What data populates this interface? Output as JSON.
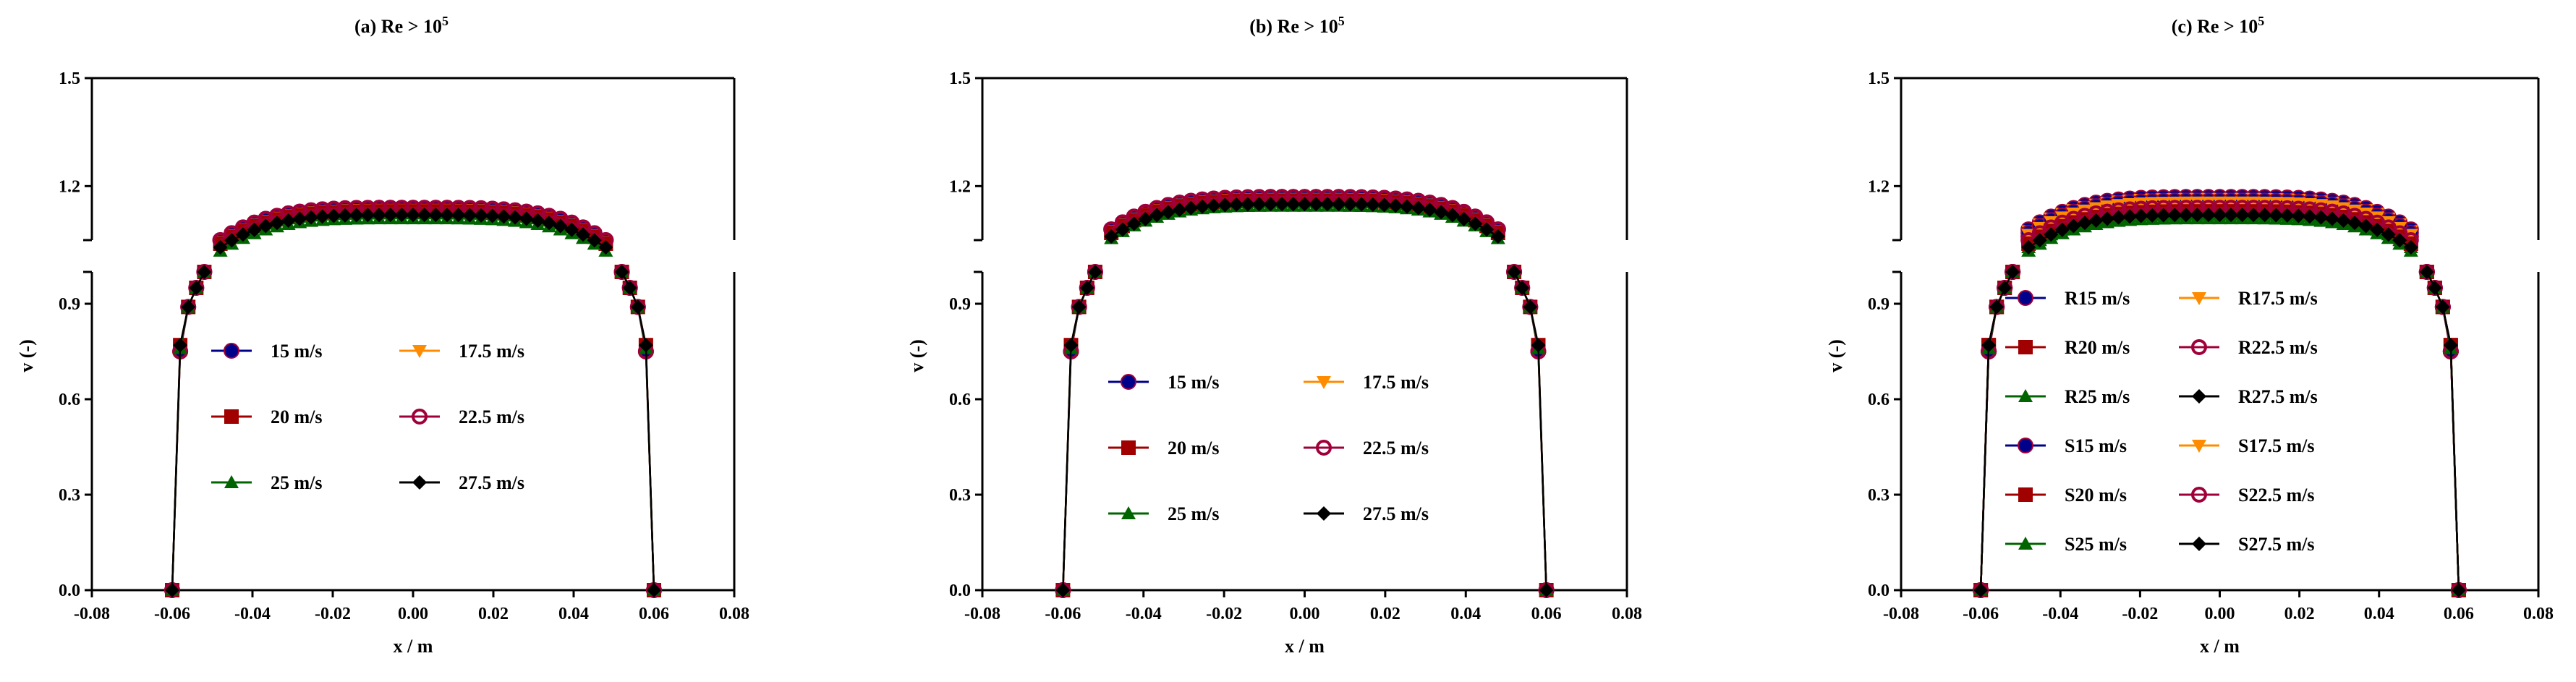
{
  "figure": {
    "panels": [
      "a",
      "b",
      "c"
    ]
  },
  "chart_data": [
    {
      "id": "a",
      "type": "line",
      "title_prefix": "(a) Re > 10",
      "title_superscript": "5",
      "xlabel": "x / m",
      "ylabel": "v (-)",
      "xlim": [
        -0.08,
        0.08
      ],
      "xticks": [
        "-0.08",
        "-0.06",
        "-0.04",
        "-0.02",
        "0.00",
        "0.02",
        "0.04",
        "0.06",
        "0.08"
      ],
      "yticks_low": [
        "0.0",
        "0.3",
        "0.6",
        "0.9"
      ],
      "yticks_high": [
        "1.2",
        "1.5"
      ],
      "ylim_low": [
        0,
        1.0
      ],
      "ylim_high": [
        1.05,
        1.5
      ],
      "legend_columns": 2,
      "series": [
        {
          "name": "15 m/s",
          "color": "#00008b",
          "marker": "circle",
          "plateau": 1.14
        },
        {
          "name": "17.5 m/s",
          "color": "#ff8c00",
          "marker": "triangle-down",
          "plateau": 1.135
        },
        {
          "name": "20 m/s",
          "color": "#a00000",
          "marker": "square",
          "plateau": 1.13
        },
        {
          "name": "22.5 m/s",
          "color": "#a0003a",
          "marker": "circle-open",
          "plateau": 1.14
        },
        {
          "name": "25 m/s",
          "color": "#006400",
          "marker": "triangle-up",
          "plateau": 1.11
        },
        {
          "name": "27.5 m/s",
          "color": "#000000",
          "marker": "diamond",
          "plateau": 1.12
        }
      ]
    },
    {
      "id": "b",
      "type": "line",
      "title_prefix": "(b)  Re > 10",
      "title_superscript": "5",
      "xlabel": "x / m",
      "ylabel": "v (-)",
      "xlim": [
        -0.08,
        0.08
      ],
      "xticks": [
        "-0.08",
        "-0.06",
        "-0.04",
        "-0.02",
        "0.00",
        "0.02",
        "0.04",
        "0.06",
        "0.08"
      ],
      "yticks_low": [
        "0.0",
        "0.3",
        "0.6",
        "0.9"
      ],
      "yticks_high": [
        "1.2",
        "1.5"
      ],
      "ylim_low": [
        0,
        1.0
      ],
      "ylim_high": [
        1.05,
        1.5
      ],
      "legend_columns": 2,
      "series": [
        {
          "name": "15 m/s",
          "color": "#00008b",
          "marker": "circle",
          "plateau": 1.17
        },
        {
          "name": "17.5 m/s",
          "color": "#ff8c00",
          "marker": "triangle-down",
          "plateau": 1.165
        },
        {
          "name": "20 m/s",
          "color": "#a00000",
          "marker": "square",
          "plateau": 1.16
        },
        {
          "name": "22.5 m/s",
          "color": "#a0003a",
          "marker": "circle-open",
          "plateau": 1.17
        },
        {
          "name": "25 m/s",
          "color": "#006400",
          "marker": "triangle-up",
          "plateau": 1.145
        },
        {
          "name": "27.5 m/s",
          "color": "#000000",
          "marker": "diamond",
          "plateau": 1.15
        }
      ]
    },
    {
      "id": "c",
      "type": "line",
      "title_prefix": "(c)  Re > 10",
      "title_superscript": "5",
      "xlabel": "x / m",
      "ylabel": "v (-)",
      "xlim": [
        -0.08,
        0.08
      ],
      "xticks": [
        "-0.08",
        "-0.06",
        "-0.04",
        "-0.02",
        "0.00",
        "0.02",
        "0.04",
        "0.06",
        "0.08"
      ],
      "yticks_low": [
        "0.0",
        "0.3",
        "0.6",
        "0.9"
      ],
      "yticks_high": [
        "1.2",
        "1.5"
      ],
      "ylim_low": [
        0,
        1.0
      ],
      "ylim_high": [
        1.05,
        1.5
      ],
      "legend_columns": 2,
      "series": [
        {
          "name": "R15 m/s",
          "color": "#00008b",
          "marker": "circle",
          "plateau": 1.17
        },
        {
          "name": "R17.5 m/s",
          "color": "#ff8c00",
          "marker": "triangle-down",
          "plateau": 1.165
        },
        {
          "name": "R20 m/s",
          "color": "#a00000",
          "marker": "square",
          "plateau": 1.14
        },
        {
          "name": "R22.5 m/s",
          "color": "#a0003a",
          "marker": "circle-open",
          "plateau": 1.15
        },
        {
          "name": "R25 m/s",
          "color": "#006400",
          "marker": "triangle-up",
          "plateau": 1.12
        },
        {
          "name": "R27.5 m/s",
          "color": "#000000",
          "marker": "diamond",
          "plateau": 1.13
        },
        {
          "name": "S15 m/s",
          "color": "#00008b",
          "marker": "circle",
          "plateau": 1.16
        },
        {
          "name": "S17.5 m/s",
          "color": "#ff8c00",
          "marker": "triangle-down",
          "plateau": 1.155
        },
        {
          "name": "S20 m/s",
          "color": "#a00000",
          "marker": "square",
          "plateau": 1.13
        },
        {
          "name": "S22.5 m/s",
          "color": "#a0003a",
          "marker": "circle-open",
          "plateau": 1.14
        },
        {
          "name": "S25 m/s",
          "color": "#006400",
          "marker": "triangle-up",
          "plateau": 1.11
        },
        {
          "name": "S27.5 m/s",
          "color": "#000000",
          "marker": "diamond",
          "plateau": 1.12
        }
      ]
    }
  ]
}
